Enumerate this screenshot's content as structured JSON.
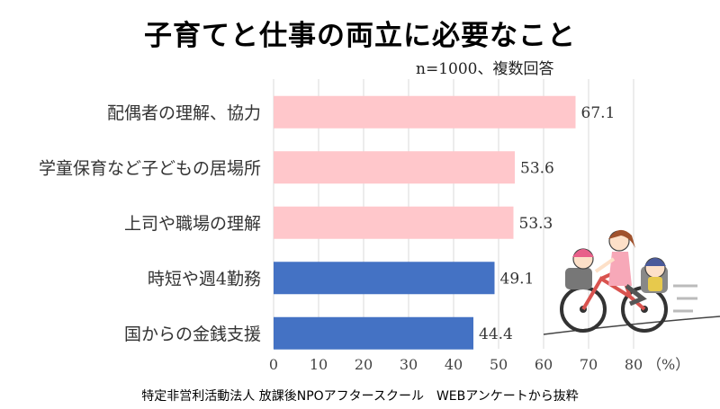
{
  "title": "子育てと仕事の両立に必要なこと",
  "note": "n=1000、複数回答",
  "source": "特定非営利活動法人 放課後NPOアフタースクール　WEBアンケートから抜粋",
  "chart_data": {
    "type": "bar",
    "orientation": "horizontal",
    "categories": [
      "配偶者の理解、協力",
      "学童保育など子どもの居場所",
      "上司や職場の理解",
      "時短や週4勤務",
      "国からの金銭支援"
    ],
    "values": [
      67.1,
      53.6,
      53.3,
      49.1,
      44.4
    ],
    "value_labels": [
      "67.1",
      "53.6",
      "53.3",
      "49.1",
      "44.4"
    ],
    "bar_colors": [
      "#ffc7cb",
      "#ffc7cb",
      "#ffc7cb",
      "#4472c4",
      "#4472c4"
    ],
    "xlim": [
      0,
      80
    ],
    "xticks": [
      0,
      10,
      20,
      30,
      40,
      50,
      60,
      70,
      80
    ],
    "xunit": "（%）",
    "grid": "vertical"
  },
  "illustration": {
    "icon": "mother-riding-bicycle-with-two-children-icon"
  }
}
